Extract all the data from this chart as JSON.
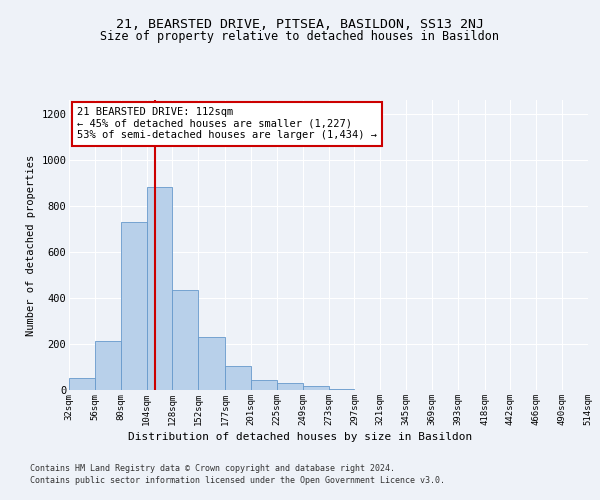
{
  "title1": "21, BEARSTED DRIVE, PITSEA, BASILDON, SS13 2NJ",
  "title2": "Size of property relative to detached houses in Basildon",
  "xlabel": "Distribution of detached houses by size in Basildon",
  "ylabel": "Number of detached properties",
  "footer1": "Contains HM Land Registry data © Crown copyright and database right 2024.",
  "footer2": "Contains public sector information licensed under the Open Government Licence v3.0.",
  "annotation_line1": "21 BEARSTED DRIVE: 112sqm",
  "annotation_line2": "← 45% of detached houses are smaller (1,227)",
  "annotation_line3": "53% of semi-detached houses are larger (1,434) →",
  "bin_h": [
    50,
    215,
    730,
    880,
    435,
    230,
    105,
    45,
    30,
    18,
    5,
    2,
    1,
    1,
    0,
    0,
    0,
    0,
    0,
    0
  ],
  "x_ticks_val": [
    32,
    56,
    80,
    104,
    128,
    152,
    177,
    201,
    225,
    249,
    273,
    297,
    321,
    345,
    369,
    393,
    418,
    442,
    466,
    490,
    514
  ],
  "tick_labels": [
    "32sqm",
    "56sqm",
    "80sqm",
    "104sqm",
    "128sqm",
    "152sqm",
    "177sqm",
    "201sqm",
    "225sqm",
    "249sqm",
    "273sqm",
    "297sqm",
    "321sqm",
    "345sqm",
    "369sqm",
    "393sqm",
    "418sqm",
    "442sqm",
    "466sqm",
    "490sqm",
    "514sqm"
  ],
  "bar_color": "#b8d0ea",
  "bar_edge_color": "#6699cc",
  "ref_line_x": 112,
  "ref_line_color": "#cc0000",
  "ylim": [
    0,
    1260
  ],
  "yticks": [
    0,
    200,
    400,
    600,
    800,
    1000,
    1200
  ],
  "background_color": "#eef2f8",
  "grid_color": "#ffffff",
  "title1_fontsize": 9.5,
  "title2_fontsize": 8.5,
  "annotation_box_color": "#ffffff",
  "annotation_box_edge": "#cc0000",
  "footer_fontsize": 6.0,
  "xlabel_fontsize": 8.0,
  "ylabel_fontsize": 7.5,
  "tick_fontsize": 6.5,
  "ytick_fontsize": 7.5,
  "annot_fontsize": 7.5
}
